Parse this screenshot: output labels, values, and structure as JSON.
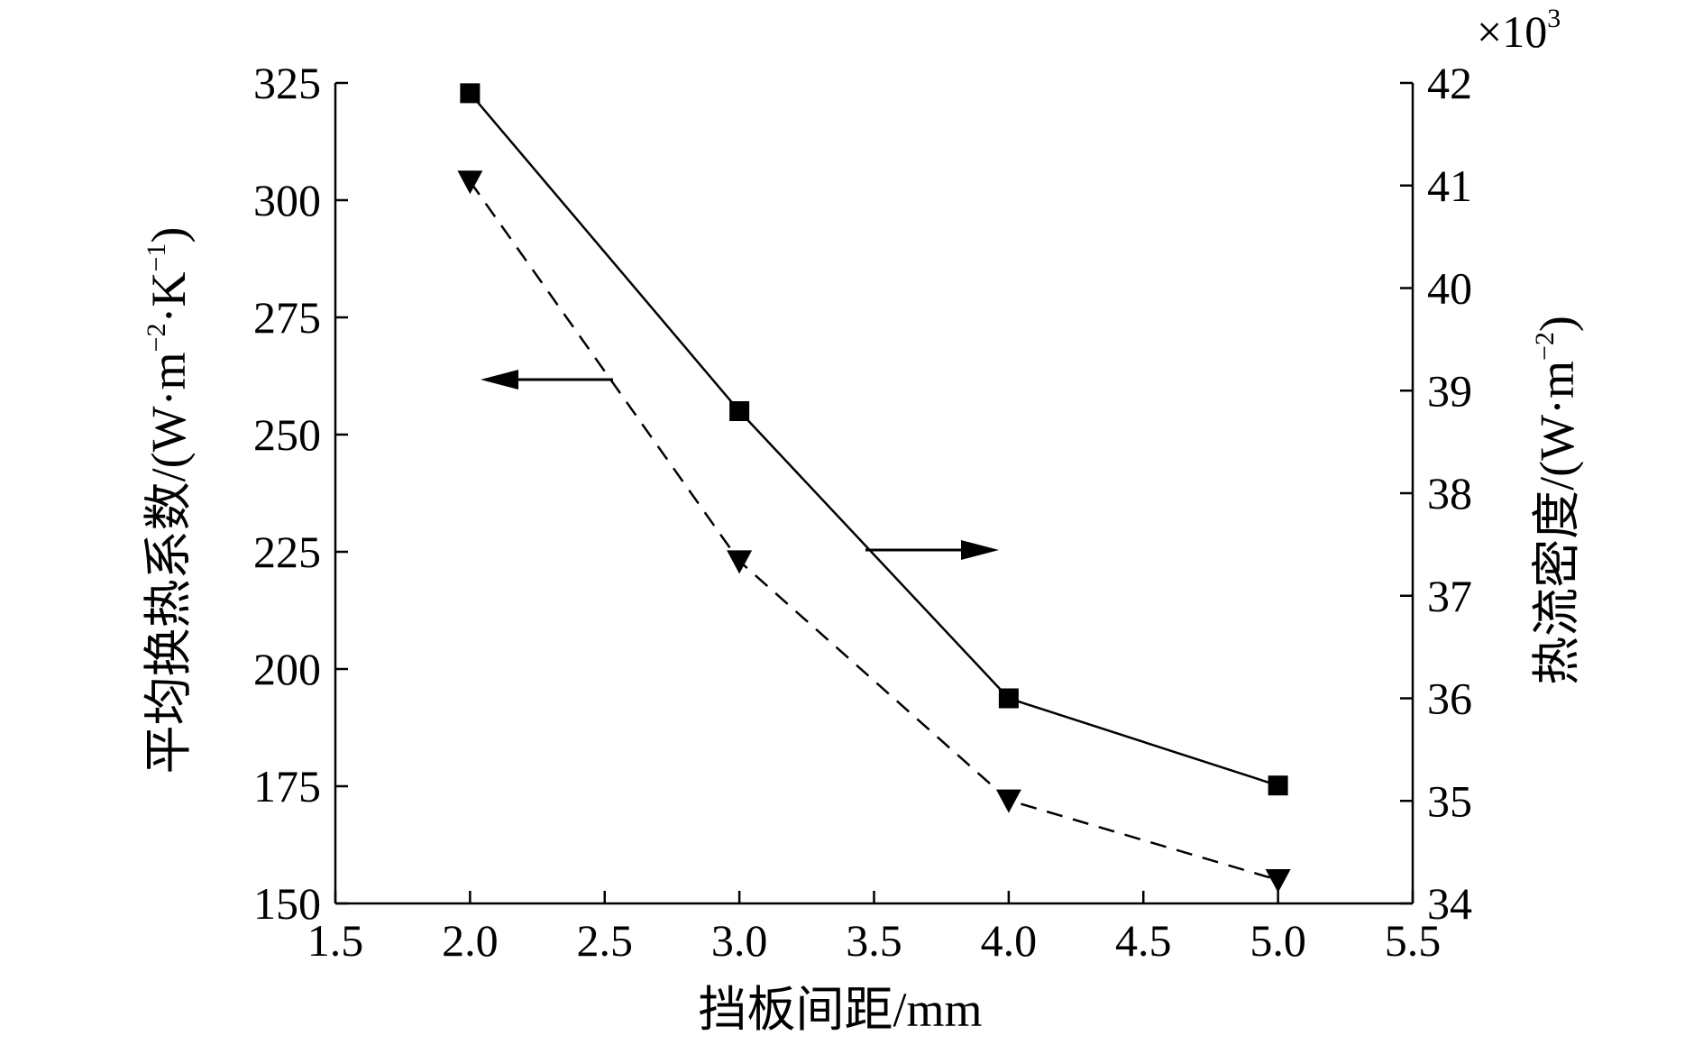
{
  "chart_data": {
    "type": "line",
    "xlabel": "挡板间距/mm",
    "ylabel_left": "平均换热系数/(W·m-2·K-1)",
    "ylabel_right": "热流密度/(W·m-2)",
    "right_multiplier": "×10",
    "right_multiplier_exp": "3",
    "xlim": [
      1.5,
      5.5
    ],
    "ylim_left": [
      150,
      325
    ],
    "ylim_right": [
      34,
      42
    ],
    "x_ticks": [
      "1.5",
      "2.0",
      "2.5",
      "3.0",
      "3.5",
      "4.0",
      "4.5",
      "5.0",
      "5.5"
    ],
    "y_left_ticks": [
      "150",
      "175",
      "200",
      "225",
      "250",
      "275",
      "300",
      "325"
    ],
    "y_right_ticks": [
      "34",
      "35",
      "36",
      "37",
      "38",
      "39",
      "40",
      "41",
      "42"
    ],
    "series": [
      {
        "axis": "left",
        "marker": "triangle-down",
        "line_style": "dashed",
        "x": [
          2.0,
          3.0,
          4.0,
          5.0
        ],
        "values": [
          304,
          223,
          172,
          155
        ]
      },
      {
        "axis": "right",
        "marker": "square",
        "line_style": "solid",
        "x": [
          2.0,
          3.0,
          4.0,
          5.0
        ],
        "values": [
          41.9,
          38.8,
          36.0,
          35.15
        ]
      }
    ],
    "annotations": [
      {
        "type": "arrow",
        "direction": "left",
        "target_axis": "left"
      },
      {
        "type": "arrow",
        "direction": "right",
        "target_axis": "right"
      }
    ],
    "grid": false,
    "legend": "none"
  }
}
